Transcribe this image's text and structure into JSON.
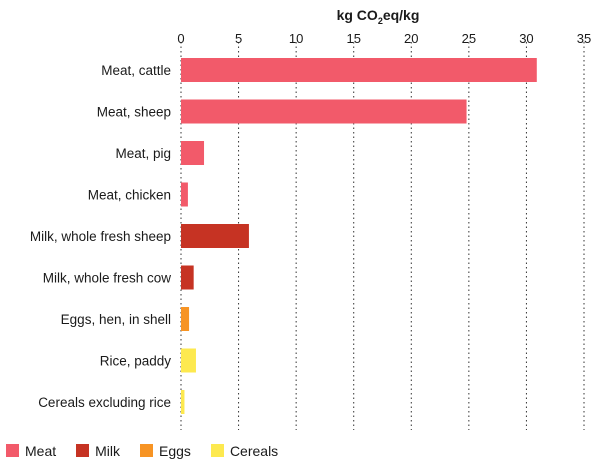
{
  "chart_data": {
    "type": "bar",
    "orientation": "horizontal",
    "xlabel_parts": [
      "kg CO",
      "2",
      "eq/kg"
    ],
    "xlim": [
      0,
      35
    ],
    "xticks": [
      0,
      5,
      10,
      15,
      20,
      25,
      30,
      35
    ],
    "grid": "vertical dotted",
    "legend_position": "bottom",
    "categories": [
      "Meat, cattle",
      "Meat, sheep",
      "Meat, pig",
      "Meat, chicken",
      "Milk, whole fresh sheep",
      "Milk, whole fresh cow",
      "Eggs, hen, in shell",
      "Rice, paddy",
      "Cereals excluding rice"
    ],
    "values": [
      30.9,
      24.8,
      2.0,
      0.6,
      5.9,
      1.1,
      0.7,
      1.3,
      0.3
    ],
    "groups": [
      "Meat",
      "Meat",
      "Meat",
      "Meat",
      "Milk",
      "Milk",
      "Eggs",
      "Cereals",
      "Cereals"
    ],
    "legend": [
      {
        "name": "Meat",
        "color": "#f25a6a"
      },
      {
        "name": "Milk",
        "color": "#c63323"
      },
      {
        "name": "Eggs",
        "color": "#f79424"
      },
      {
        "name": "Cereals",
        "color": "#fde94f"
      }
    ]
  }
}
